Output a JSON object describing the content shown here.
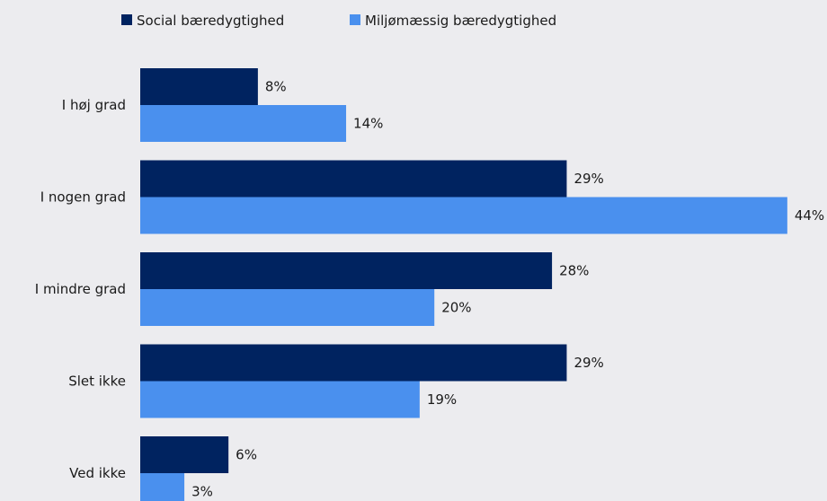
{
  "chart_data": {
    "type": "bar",
    "orientation": "horizontal",
    "categories": [
      "I høj grad",
      "I nogen grad",
      "I mindre grad",
      "Slet ikke",
      "Ved ikke"
    ],
    "series": [
      {
        "name": "Social bæredygtighed",
        "color": "#002360",
        "values": [
          8,
          29,
          28,
          29,
          6
        ]
      },
      {
        "name": "Miljømæssig bæredygtighed",
        "color": "#4a90ee",
        "values": [
          14,
          44,
          20,
          19,
          3
        ]
      }
    ],
    "value_suffix": "%",
    "xlim": [
      0,
      44
    ],
    "grid": false,
    "legend_position": "top"
  }
}
